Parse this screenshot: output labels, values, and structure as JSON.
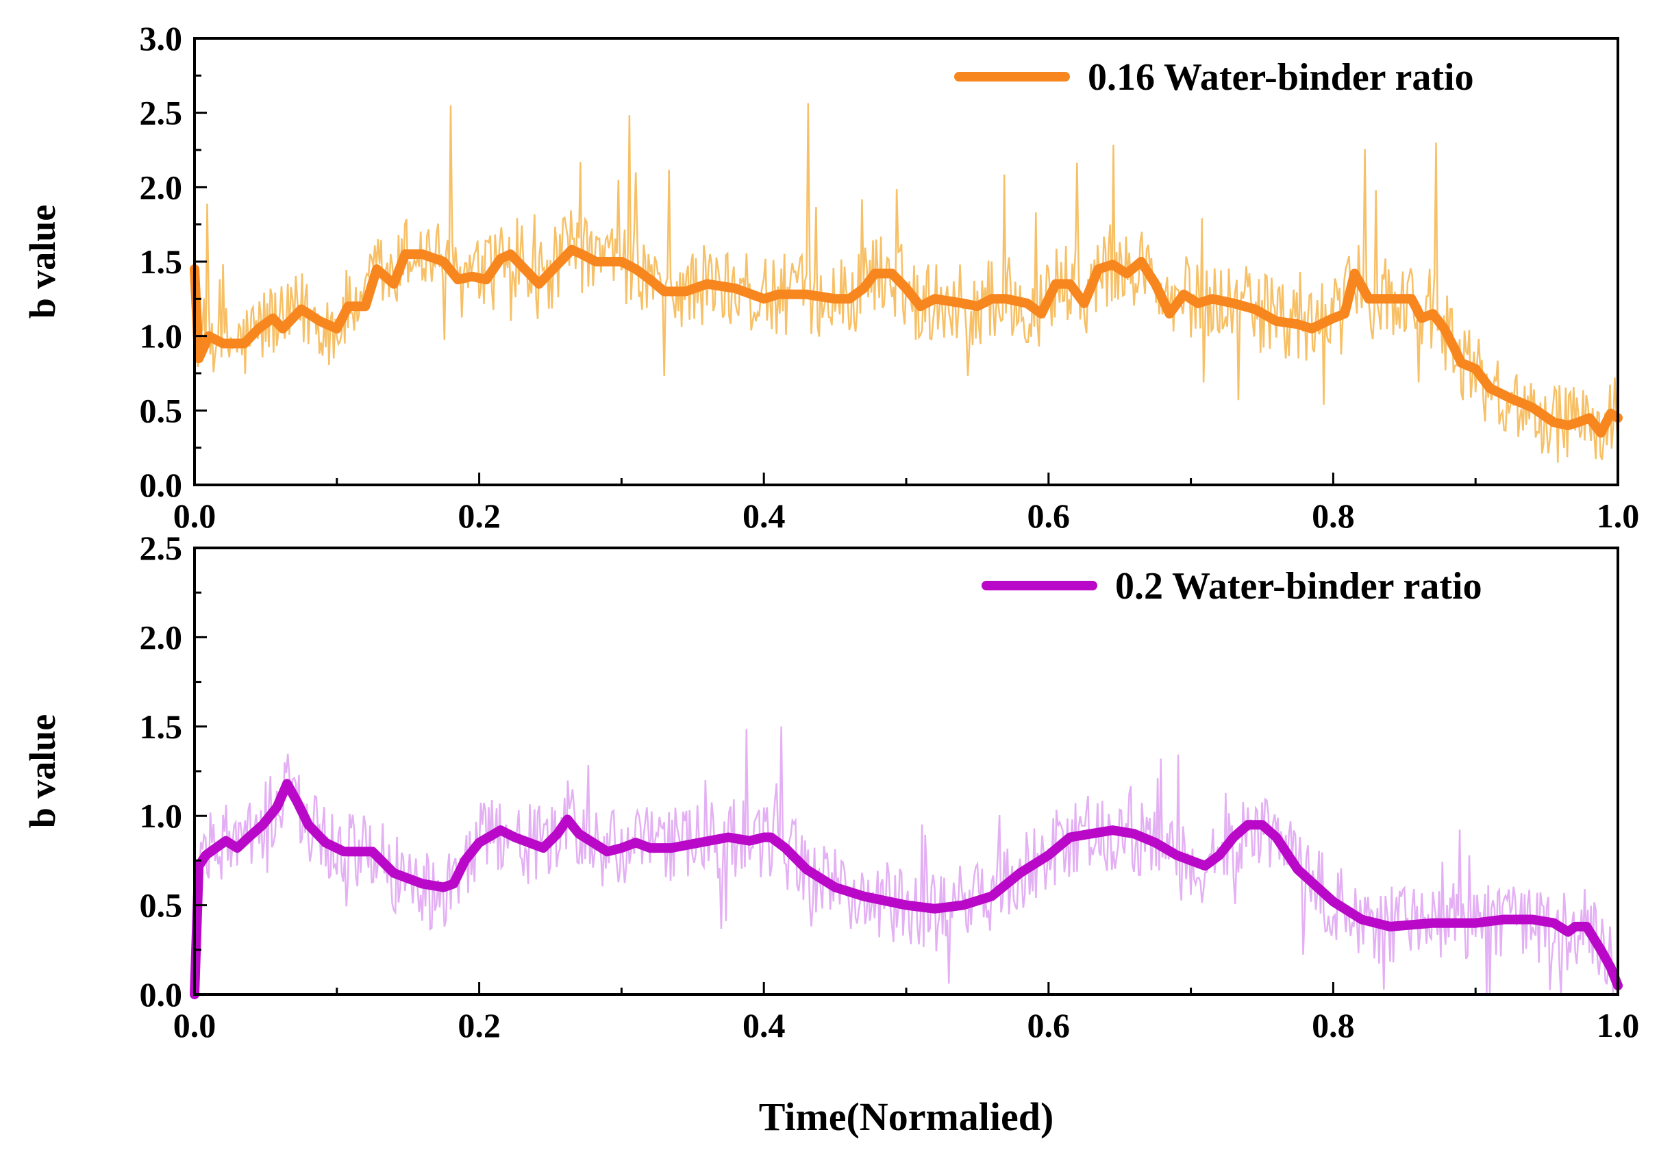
{
  "chart_data": [
    {
      "type": "line",
      "ylabel": "b value",
      "xlabel": "",
      "xlim": [
        0.0,
        1.0
      ],
      "ylim": [
        0.0,
        3.0
      ],
      "x_ticks": [
        "0.0",
        "0.2",
        "0.4",
        "0.6",
        "0.8",
        "1.0"
      ],
      "y_ticks": [
        "0.0",
        "0.5",
        "1.0",
        "1.5",
        "2.0",
        "2.5",
        "3.0"
      ],
      "legend_position": "top-right",
      "series": [
        {
          "name": "0.16 Water-binder ratio",
          "role": "smoothed",
          "color": "#f7861e",
          "x": [
            0.0,
            0.003,
            0.01,
            0.02,
            0.035,
            0.045,
            0.055,
            0.062,
            0.075,
            0.088,
            0.1,
            0.108,
            0.12,
            0.128,
            0.14,
            0.148,
            0.16,
            0.175,
            0.185,
            0.195,
            0.205,
            0.215,
            0.222,
            0.232,
            0.242,
            0.255,
            0.265,
            0.272,
            0.282,
            0.3,
            0.31,
            0.32,
            0.33,
            0.345,
            0.36,
            0.38,
            0.4,
            0.41,
            0.43,
            0.45,
            0.46,
            0.47,
            0.478,
            0.49,
            0.5,
            0.51,
            0.52,
            0.54,
            0.55,
            0.56,
            0.57,
            0.585,
            0.595,
            0.605,
            0.615,
            0.625,
            0.635,
            0.645,
            0.655,
            0.665,
            0.675,
            0.685,
            0.695,
            0.705,
            0.715,
            0.73,
            0.745,
            0.76,
            0.775,
            0.785,
            0.8,
            0.808,
            0.815,
            0.825,
            0.84,
            0.855,
            0.862,
            0.87,
            0.878,
            0.885,
            0.89,
            0.9,
            0.91,
            0.925,
            0.94,
            0.955,
            0.965,
            0.972,
            0.98,
            0.988,
            0.995,
            1.0
          ],
          "y": [
            1.45,
            0.85,
            1.0,
            0.95,
            0.95,
            1.05,
            1.12,
            1.05,
            1.18,
            1.1,
            1.05,
            1.2,
            1.2,
            1.45,
            1.35,
            1.55,
            1.55,
            1.5,
            1.38,
            1.4,
            1.38,
            1.52,
            1.55,
            1.45,
            1.35,
            1.48,
            1.58,
            1.55,
            1.5,
            1.5,
            1.45,
            1.38,
            1.3,
            1.3,
            1.35,
            1.32,
            1.25,
            1.28,
            1.28,
            1.25,
            1.25,
            1.32,
            1.42,
            1.42,
            1.32,
            1.2,
            1.25,
            1.22,
            1.2,
            1.25,
            1.25,
            1.22,
            1.15,
            1.35,
            1.35,
            1.22,
            1.45,
            1.48,
            1.42,
            1.5,
            1.35,
            1.15,
            1.28,
            1.22,
            1.25,
            1.22,
            1.18,
            1.1,
            1.08,
            1.05,
            1.12,
            1.15,
            1.42,
            1.25,
            1.25,
            1.25,
            1.12,
            1.15,
            1.05,
            0.92,
            0.82,
            0.78,
            0.65,
            0.58,
            0.52,
            0.42,
            0.4,
            0.42,
            0.45,
            0.35,
            0.48,
            0.45
          ]
        }
      ]
    },
    {
      "type": "line",
      "ylabel": "b value",
      "xlabel": "Time(Normalied)",
      "xlim": [
        0.0,
        1.0
      ],
      "ylim": [
        0.0,
        2.5
      ],
      "x_ticks": [
        "0.0",
        "0.2",
        "0.4",
        "0.6",
        "0.8",
        "1.0"
      ],
      "y_ticks": [
        "0.0",
        "0.5",
        "1.0",
        "1.5",
        "2.0",
        "2.5"
      ],
      "legend_position": "top-right",
      "series": [
        {
          "name": "0.2 Water-binder ratio",
          "role": "smoothed",
          "color": "#b908c8",
          "x": [
            0.0,
            0.003,
            0.008,
            0.015,
            0.022,
            0.03,
            0.038,
            0.048,
            0.058,
            0.065,
            0.072,
            0.08,
            0.092,
            0.105,
            0.118,
            0.125,
            0.14,
            0.16,
            0.175,
            0.182,
            0.19,
            0.2,
            0.215,
            0.225,
            0.235,
            0.245,
            0.255,
            0.262,
            0.27,
            0.28,
            0.29,
            0.3,
            0.31,
            0.32,
            0.335,
            0.355,
            0.375,
            0.39,
            0.4,
            0.405,
            0.415,
            0.43,
            0.45,
            0.47,
            0.5,
            0.52,
            0.54,
            0.56,
            0.58,
            0.6,
            0.615,
            0.63,
            0.645,
            0.66,
            0.675,
            0.69,
            0.7,
            0.71,
            0.72,
            0.73,
            0.74,
            0.75,
            0.76,
            0.775,
            0.8,
            0.82,
            0.84,
            0.87,
            0.9,
            0.92,
            0.94,
            0.955,
            0.965,
            0.97,
            0.978,
            0.988,
            0.995,
            1.0
          ],
          "y": [
            0.0,
            0.72,
            0.78,
            0.82,
            0.86,
            0.82,
            0.88,
            0.95,
            1.05,
            1.18,
            1.08,
            0.95,
            0.85,
            0.8,
            0.8,
            0.8,
            0.68,
            0.62,
            0.6,
            0.62,
            0.75,
            0.85,
            0.92,
            0.88,
            0.85,
            0.82,
            0.9,
            0.98,
            0.9,
            0.85,
            0.8,
            0.82,
            0.85,
            0.82,
            0.82,
            0.85,
            0.88,
            0.86,
            0.88,
            0.88,
            0.82,
            0.7,
            0.6,
            0.55,
            0.5,
            0.48,
            0.5,
            0.55,
            0.68,
            0.78,
            0.88,
            0.9,
            0.92,
            0.9,
            0.85,
            0.78,
            0.75,
            0.72,
            0.78,
            0.88,
            0.95,
            0.95,
            0.88,
            0.7,
            0.52,
            0.42,
            0.38,
            0.4,
            0.4,
            0.42,
            0.42,
            0.4,
            0.35,
            0.38,
            0.38,
            0.25,
            0.15,
            0.05
          ]
        }
      ]
    }
  ]
}
